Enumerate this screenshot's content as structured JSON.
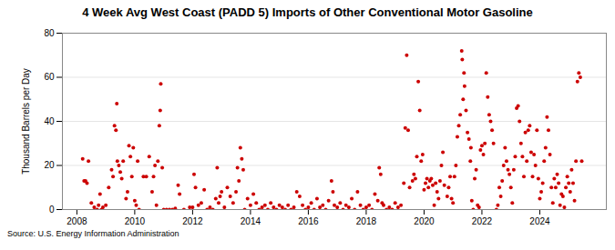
{
  "chart_data": {
    "type": "scatter",
    "title": "4 Week Avg West Coast (PADD 5) Imports of Other Conventional Motor Gasoline",
    "y_label": "Thousand Barrels per Day",
    "source": "Source: U.S. Energy Information Administration",
    "color": "#cc0000",
    "grid": true,
    "xlim": [
      2007.5,
      2026.3
    ],
    "xticks": [
      2008,
      2010,
      2012,
      2014,
      2016,
      2018,
      2020,
      2022,
      2024
    ],
    "ylim": [
      0,
      80
    ],
    "yticks": [
      0,
      20,
      40,
      60,
      80
    ],
    "x": [
      2008.2,
      2008.25,
      2008.3,
      2008.35,
      2008.4,
      2008.5,
      2008.6,
      2008.7,
      2008.75,
      2008.8,
      2008.85,
      2008.9,
      2009.0,
      2009.1,
      2009.2,
      2009.25,
      2009.3,
      2009.35,
      2009.38,
      2009.4,
      2009.45,
      2009.5,
      2009.55,
      2009.6,
      2009.7,
      2009.75,
      2009.8,
      2009.85,
      2009.9,
      2009.95,
      2010.0,
      2010.05,
      2010.1,
      2010.15,
      2010.3,
      2010.4,
      2010.5,
      2010.6,
      2010.65,
      2010.7,
      2010.75,
      2010.8,
      2010.85,
      2010.88,
      2010.9,
      2010.95,
      2011.0,
      2011.1,
      2011.2,
      2011.3,
      2011.4,
      2011.5,
      2011.55,
      2011.7,
      2011.9,
      2012.0,
      2012.05,
      2012.1,
      2012.2,
      2012.3,
      2012.4,
      2012.5,
      2012.6,
      2012.7,
      2012.8,
      2012.85,
      2012.9,
      2012.95,
      2013.0,
      2013.1,
      2013.2,
      2013.3,
      2013.4,
      2013.5,
      2013.55,
      2013.6,
      2013.65,
      2013.7,
      2013.75,
      2013.8,
      2013.9,
      2014.0,
      2014.1,
      2014.2,
      2014.3,
      2014.4,
      2014.5,
      2014.6,
      2014.7,
      2014.8,
      2014.9,
      2015.0,
      2015.1,
      2015.2,
      2015.3,
      2015.4,
      2015.5,
      2015.6,
      2015.7,
      2015.8,
      2015.9,
      2016.0,
      2016.1,
      2016.2,
      2016.3,
      2016.4,
      2016.5,
      2016.6,
      2016.7,
      2016.8,
      2016.85,
      2016.9,
      2017.0,
      2017.1,
      2017.2,
      2017.3,
      2017.4,
      2017.5,
      2017.6,
      2017.7,
      2017.8,
      2017.9,
      2018.0,
      2018.1,
      2018.2,
      2018.3,
      2018.4,
      2018.45,
      2018.5,
      2018.55,
      2018.6,
      2018.7,
      2018.8,
      2018.9,
      2019.0,
      2019.1,
      2019.2,
      2019.3,
      2019.35,
      2019.4,
      2019.45,
      2019.5,
      2019.6,
      2019.65,
      2019.7,
      2019.75,
      2019.8,
      2019.85,
      2019.9,
      2019.95,
      2020.0,
      2020.05,
      2020.1,
      2020.15,
      2020.2,
      2020.25,
      2020.3,
      2020.35,
      2020.4,
      2020.45,
      2020.5,
      2020.55,
      2020.6,
      2020.65,
      2020.7,
      2020.8,
      2020.85,
      2020.9,
      2020.95,
      2021.0,
      2021.05,
      2021.1,
      2021.15,
      2021.2,
      2021.25,
      2021.3,
      2021.32,
      2021.35,
      2021.38,
      2021.4,
      2021.45,
      2021.5,
      2021.55,
      2021.6,
      2021.62,
      2021.65,
      2021.7,
      2021.75,
      2021.8,
      2021.85,
      2021.9,
      2021.95,
      2022.0,
      2022.05,
      2022.1,
      2022.15,
      2022.2,
      2022.25,
      2022.3,
      2022.35,
      2022.4,
      2022.5,
      2022.55,
      2022.6,
      2022.65,
      2022.7,
      2022.75,
      2022.8,
      2022.85,
      2022.9,
      2022.95,
      2023.0,
      2023.05,
      2023.1,
      2023.15,
      2023.2,
      2023.25,
      2023.3,
      2023.35,
      2023.4,
      2023.45,
      2023.5,
      2023.55,
      2023.6,
      2023.65,
      2023.7,
      2023.75,
      2023.8,
      2023.85,
      2023.9,
      2023.95,
      2024.0,
      2024.05,
      2024.1,
      2024.15,
      2024.2,
      2024.25,
      2024.3,
      2024.35,
      2024.4,
      2024.45,
      2024.5,
      2024.55,
      2024.6,
      2024.65,
      2024.7,
      2024.75,
      2024.8,
      2024.85,
      2024.9,
      2024.95,
      2025.0,
      2025.05,
      2025.1,
      2025.15,
      2025.2,
      2025.25,
      2025.3,
      2025.35,
      2025.4,
      2025.45
    ],
    "values": [
      23,
      13,
      13,
      12,
      22,
      3,
      1,
      0,
      2,
      7,
      0,
      1,
      2,
      10,
      18,
      15,
      38,
      36,
      48,
      22,
      20,
      17,
      14,
      22,
      5,
      8,
      29,
      24,
      15,
      28,
      4,
      2,
      22,
      0,
      15,
      15,
      24,
      8,
      15,
      20,
      2,
      22,
      38,
      45,
      57,
      19,
      0,
      0,
      0,
      0,
      0.5,
      11,
      7,
      0,
      1,
      1,
      16,
      10,
      2,
      3,
      9,
      0,
      1,
      0,
      5,
      19,
      3,
      6,
      8,
      1,
      10,
      6,
      3,
      8,
      19,
      13,
      28,
      23,
      18,
      0,
      5,
      2,
      7,
      3,
      0,
      1,
      2,
      0,
      3,
      1,
      0,
      2,
      1,
      0,
      2,
      0,
      1,
      8,
      6,
      2,
      0,
      1,
      3,
      0,
      5,
      1,
      2,
      0,
      4,
      13,
      8,
      2,
      1,
      3,
      0,
      2,
      1,
      5,
      0,
      8,
      2,
      0,
      1,
      2,
      0,
      7,
      4,
      19,
      16,
      3,
      2,
      0,
      1,
      0,
      3,
      1,
      2,
      12,
      37,
      70,
      36,
      10,
      13,
      16,
      14,
      24,
      58,
      45,
      22,
      25,
      9,
      12,
      14,
      10,
      13,
      14,
      11,
      2,
      12,
      8,
      5,
      13,
      20,
      26,
      11,
      6,
      10,
      15,
      5,
      3,
      15,
      20,
      33,
      38,
      43,
      72,
      68,
      50,
      62,
      56,
      45,
      35,
      32,
      22,
      28,
      4,
      0,
      14,
      18,
      2,
      1,
      27,
      29,
      25,
      30,
      62,
      51,
      43,
      40,
      36,
      30,
      0,
      2,
      10,
      6,
      13,
      20,
      28,
      22,
      18,
      16,
      10,
      3,
      18,
      24,
      46,
      47,
      40,
      30,
      24,
      15,
      35,
      22,
      36,
      38,
      26,
      15,
      25,
      20,
      36,
      14,
      5,
      8,
      12,
      22,
      28,
      42,
      36,
      25,
      10,
      3,
      14,
      10,
      16,
      12,
      2,
      7,
      6,
      1,
      10,
      15,
      12,
      8,
      18,
      12,
      4,
      22,
      58,
      62,
      60,
      22
    ]
  }
}
